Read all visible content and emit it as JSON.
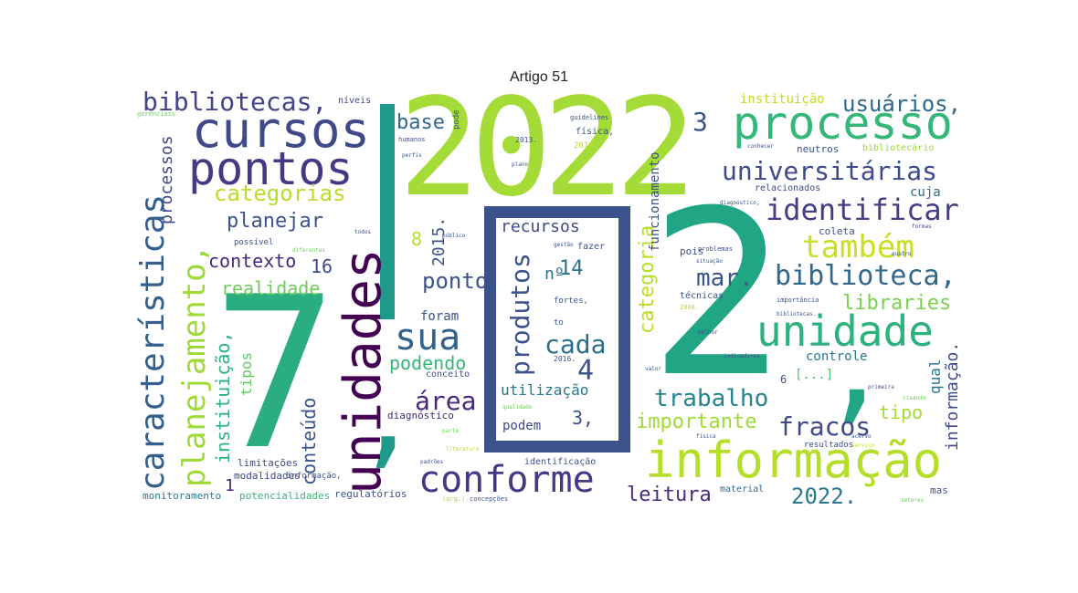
{
  "title": "Artigo 51",
  "words": {
    "w2022": "2022",
    "w7": "7",
    "comma7": ",",
    "w2": "2",
    "comma2": ",",
    "cursos": "cursos",
    "pontos": "pontos",
    "processo": "processo",
    "informacao_big": "informação",
    "conforme": "conforme",
    "unidade": "unidade",
    "unidades": "unidades",
    "caracteristicas": "características",
    "planejamento": "planejamento,",
    "universitarias": "universitárias",
    "identificar": "identificar",
    "tambem": "também",
    "biblioteca": "biblioteca,",
    "usuarios": "usuários,",
    "bibliotecas": "bibliotecas,",
    "categorias": "categorias",
    "sua": "sua",
    "produtos": "produtos",
    "recursos": "recursos",
    "planejar": "planejar",
    "contexto": "contexto",
    "realidade": "realidade",
    "base": "base",
    "ponto": "ponto",
    "cada": "cada",
    "area": "área",
    "trabalho": "trabalho",
    "fracos": "fracos",
    "importante": "importante",
    "leitura": "leitura",
    "ano2022": "2022.",
    "mar": "mar.",
    "libraries": "libraries",
    "podendo": "podendo",
    "utilizacao": "utilização",
    "conteudo": "conteúdo",
    "instituicao_v": "instituição,",
    "processos": "processos",
    "categoria": "categoria",
    "funcionamento": "funcionamento",
    "informacao_v": "informação.",
    "tipo": "tipo",
    "tipos": "tipos",
    "qual": "qual",
    "controle": "controle",
    "cuja": "cuja",
    "instituicao_top": "instituição",
    "w2015": "2015.",
    "n3": "3",
    "n4": "4",
    "n8": "8",
    "n14": "14",
    "n16": "16",
    "n3c": "3,",
    "n1": "1",
    "n6": "6",
    "no": "nº",
    "foram": "foram",
    "podem": "podem",
    "diagnostico": "diagnóstico",
    "conceito": "conceito",
    "limitacoes": "limitações",
    "modalidades": "modalidades",
    "monitoramento": "monitoramento",
    "potencialidades": "potencialidades",
    "regulatorios": "regulatórios",
    "identificacao": "identificação",
    "material": "material",
    "mas": "mas",
    "resultados": "resultados",
    "relacionados": "relacionados",
    "neutros": "neutros",
    "bibliotecario": "bibliotecário",
    "coleta": "coleta",
    "pois": "pois",
    "problemas": "problemas",
    "tecnicas": "técnicas",
    "fazer": "fazer",
    "niveis": "níveis",
    "pode": "pode",
    "possivel": "possível",
    "fisica": "física,",
    "ano2016": "2016.",
    "ano2013": "2013.",
    "humanos": "humanos",
    "guidelines": "guidelines",
    "todos": "todos",
    "diferentes": "diferentes",
    "gerenciais": "gerenciais",
    "to": "to",
    "reticencias": "[...]",
    "fortes": "fortes,",
    "ano2016b": "2016.",
    "informacao_small": "informação,",
    "gestao": "gestão",
    "publico": "público",
    "plano": "plano",
    "perfis": "perfis",
    "diagnostico2": "diagnóstico,",
    "ano2006": "2006.",
    "org": "(org.).",
    "concepcoes": "concepções",
    "padroes": "padrões",
    "literatura": "literatura",
    "parte": "parte",
    "qualidade": "qualidade",
    "importancia": "importância",
    "melhor": "melhor",
    "indicadores": "indicadores",
    "valor": "valor",
    "visando": "visando",
    "setores": "setores",
    "servico": "serviço",
    "quatro": "quatro",
    "formas": "formas",
    "primeira": "primeira",
    "bibliotecas2": "bibliotecas.",
    "conhecer": "conhecer",
    "situacao": "situação",
    "fisica2": "física",
    "acervo": "acervo"
  }
}
